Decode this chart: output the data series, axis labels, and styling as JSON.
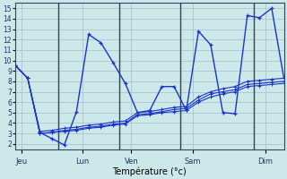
{
  "background_color": "#cce8e8",
  "grid_color": "#aabbcc",
  "line_color": "#1a35c8",
  "xlabel": "Température (°c)",
  "yticks": [
    2,
    3,
    4,
    5,
    6,
    7,
    8,
    9,
    10,
    11,
    12,
    13,
    14,
    15
  ],
  "ylim": [
    1.5,
    15.5
  ],
  "xlim": [
    0,
    22
  ],
  "xtick_labels": [
    "Jeu",
    "Lun",
    "Ven",
    "Sam",
    "Dim"
  ],
  "xtick_positions": [
    0.5,
    5.5,
    9.5,
    14.5,
    20.5
  ],
  "vline_positions": [
    3.5,
    8.5,
    13.5,
    19.5
  ],
  "series1": [
    9.5,
    8.3,
    3.1,
    2.5,
    1.9,
    5.1,
    12.5,
    11.7,
    9.8,
    7.8,
    5.0,
    5.2,
    7.5,
    7.5,
    5.2,
    12.8,
    11.5,
    5.0,
    4.9,
    14.3,
    14.1,
    15.0,
    8.3
  ],
  "series2": [
    9.5,
    8.3,
    3.2,
    3.3,
    3.5,
    3.6,
    3.8,
    3.9,
    4.1,
    4.2,
    5.0,
    5.1,
    5.3,
    5.5,
    5.6,
    6.5,
    7.0,
    7.3,
    7.5,
    8.0,
    8.1,
    8.2,
    8.3
  ],
  "series3": [
    9.5,
    8.3,
    3.0,
    3.1,
    3.3,
    3.4,
    3.6,
    3.7,
    3.9,
    4.0,
    4.8,
    4.9,
    5.1,
    5.3,
    5.4,
    6.2,
    6.8,
    7.0,
    7.2,
    7.7,
    7.8,
    7.9,
    8.0
  ],
  "series4": [
    9.5,
    8.3,
    3.0,
    3.1,
    3.2,
    3.3,
    3.5,
    3.6,
    3.8,
    3.9,
    4.7,
    4.8,
    5.0,
    5.1,
    5.2,
    6.0,
    6.5,
    6.8,
    7.0,
    7.5,
    7.6,
    7.7,
    7.8
  ]
}
